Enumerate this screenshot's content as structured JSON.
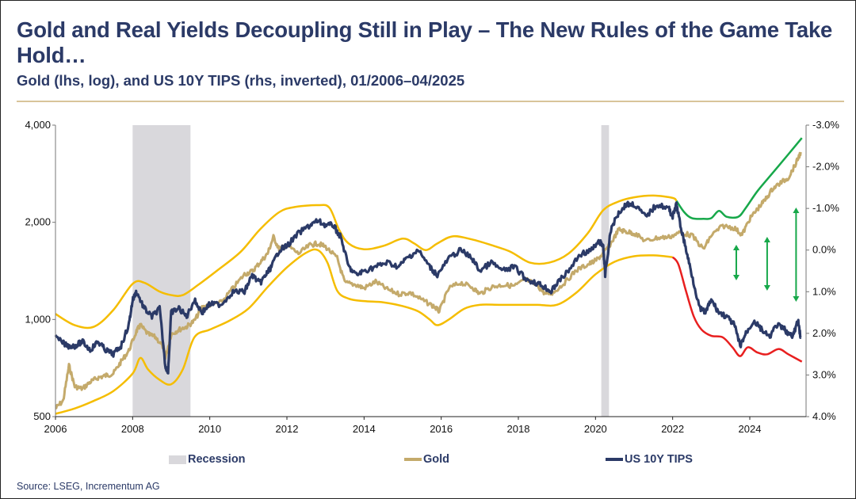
{
  "header": {
    "title": "Gold and Real Yields Decoupling Still in Play – The New Rules of the Game Take Hold…",
    "subtitle": "Gold (lhs, log), and US 10Y TIPS (rhs, inverted), 01/2006–04/2025"
  },
  "footer": {
    "source": "Source: LSEG, Incrementum AG"
  },
  "colors": {
    "title": "#2b3a67",
    "gold": "#c4aa6b",
    "tips": "#2b3a67",
    "channel": "#f5bd00",
    "green": "#17a84a",
    "red": "#e81f1f",
    "recession": "#d9d8dc",
    "rule": "#d8c49a"
  },
  "chart_data": {
    "type": "line",
    "title": "Gold and Real Yields Decoupling Still in Play – The New Rules of the Game Take Hold…",
    "subtitle": "Gold (lhs, log), and US 10Y TIPS (rhs, inverted), 01/2006–04/2025",
    "x_range": [
      2006,
      2025.35
    ],
    "x_ticks": [
      "2006",
      "2008",
      "2010",
      "2012",
      "2014",
      "2016",
      "2018",
      "2020",
      "2022",
      "2024"
    ],
    "y_left": {
      "label": "Gold (USD, log)",
      "scale": "log",
      "range": [
        500,
        4000
      ],
      "ticks": [
        "500",
        "1,000",
        "2,000",
        "4,000"
      ],
      "tick_values": [
        500,
        1000,
        2000,
        4000
      ]
    },
    "y_right": {
      "label": "US 10Y TIPS (inverted)",
      "range": [
        4.0,
        -3.0
      ],
      "inverted": true,
      "ticks": [
        "-3.0%",
        "-2.0%",
        "-1.0%",
        "0.0%",
        "1.0%",
        "2.0%",
        "3.0%",
        "4.0%"
      ],
      "tick_values": [
        -3,
        -2,
        -1,
        0,
        1,
        2,
        3,
        4
      ]
    },
    "legend": [
      {
        "name": "Recession",
        "kind": "area"
      },
      {
        "name": "Gold",
        "kind": "line"
      },
      {
        "name": "US 10Y TIPS",
        "kind": "line"
      }
    ],
    "legend_position": "bottom",
    "recessions": [
      [
        2008.0,
        2009.5
      ],
      [
        2020.15,
        2020.35
      ]
    ],
    "series": [
      {
        "name": "Gold",
        "axis": "left",
        "x": [
          2006.0,
          2006.2,
          2006.35,
          2006.5,
          2006.7,
          2006.9,
          2007.1,
          2007.3,
          2007.5,
          2007.7,
          2007.9,
          2008.1,
          2008.2,
          2008.4,
          2008.6,
          2008.8,
          2008.85,
          2009.0,
          2009.2,
          2009.4,
          2009.6,
          2009.8,
          2010.0,
          2010.3,
          2010.6,
          2010.9,
          2011.1,
          2011.3,
          2011.5,
          2011.65,
          2011.8,
          2012.0,
          2012.3,
          2012.6,
          2012.8,
          2013.0,
          2013.3,
          2013.5,
          2013.8,
          2014.0,
          2014.3,
          2014.6,
          2014.9,
          2015.2,
          2015.5,
          2015.8,
          2015.95,
          2016.2,
          2016.5,
          2016.8,
          2017.0,
          2017.3,
          2017.6,
          2017.9,
          2018.2,
          2018.5,
          2018.7,
          2018.9,
          2019.2,
          2019.5,
          2019.8,
          2020.0,
          2020.2,
          2020.4,
          2020.6,
          2020.8,
          2021.0,
          2021.3,
          2021.6,
          2021.9,
          2022.2,
          2022.5,
          2022.8,
          2023.0,
          2023.3,
          2023.6,
          2023.8,
          2024.0,
          2024.2,
          2024.4,
          2024.6,
          2024.8,
          2025.0,
          2025.2,
          2025.32
        ],
        "values": [
          530,
          560,
          720,
          620,
          610,
          640,
          660,
          670,
          680,
          740,
          800,
          920,
          960,
          900,
          880,
          820,
          760,
          900,
          930,
          950,
          990,
          1090,
          1110,
          1130,
          1250,
          1380,
          1410,
          1500,
          1600,
          1800,
          1650,
          1700,
          1600,
          1700,
          1720,
          1680,
          1550,
          1300,
          1280,
          1250,
          1310,
          1240,
          1200,
          1210,
          1150,
          1100,
          1060,
          1250,
          1300,
          1260,
          1200,
          1260,
          1280,
          1270,
          1330,
          1270,
          1200,
          1210,
          1300,
          1420,
          1480,
          1520,
          1600,
          1720,
          1900,
          1870,
          1850,
          1750,
          1790,
          1800,
          1860,
          1820,
          1650,
          1820,
          1950,
          1920,
          1830,
          2050,
          2200,
          2350,
          2550,
          2650,
          2750,
          3050,
          3300
        ]
      },
      {
        "name": "US 10Y TIPS",
        "axis": "right",
        "unit": "%",
        "x": [
          2006.0,
          2006.3,
          2006.5,
          2006.7,
          2006.9,
          2007.1,
          2007.3,
          2007.5,
          2007.7,
          2007.9,
          2008.0,
          2008.1,
          2008.3,
          2008.5,
          2008.7,
          2008.85,
          2008.92,
          2009.0,
          2009.2,
          2009.4,
          2009.6,
          2009.8,
          2010.0,
          2010.3,
          2010.6,
          2010.9,
          2011.1,
          2011.3,
          2011.45,
          2011.6,
          2011.8,
          2012.0,
          2012.3,
          2012.6,
          2012.8,
          2013.0,
          2013.2,
          2013.4,
          2013.6,
          2013.8,
          2014.0,
          2014.3,
          2014.6,
          2014.9,
          2015.1,
          2015.4,
          2015.7,
          2015.9,
          2016.2,
          2016.5,
          2016.8,
          2017.0,
          2017.3,
          2017.6,
          2017.9,
          2018.2,
          2018.5,
          2018.7,
          2018.85,
          2019.0,
          2019.3,
          2019.6,
          2019.9,
          2020.1,
          2020.2,
          2020.25,
          2020.4,
          2020.6,
          2020.8,
          2021.0,
          2021.3,
          2021.6,
          2021.9,
          2022.0,
          2022.1,
          2022.2,
          2022.35,
          2022.5,
          2022.7,
          2022.85,
          2023.0,
          2023.2,
          2023.4,
          2023.6,
          2023.75,
          2023.9,
          2024.1,
          2024.3,
          2024.5,
          2024.7,
          2024.9,
          2025.1,
          2025.25,
          2025.32
        ],
        "values": [
          2.1,
          2.3,
          2.3,
          2.2,
          2.4,
          2.2,
          2.4,
          2.5,
          2.3,
          1.8,
          1.2,
          1.0,
          1.4,
          1.6,
          1.4,
          2.8,
          2.9,
          1.5,
          1.4,
          1.6,
          1.2,
          1.5,
          1.3,
          1.3,
          1.0,
          1.0,
          0.6,
          0.8,
          0.6,
          0.4,
          0.0,
          -0.1,
          -0.4,
          -0.6,
          -0.7,
          -0.6,
          -0.6,
          -0.3,
          0.4,
          0.6,
          0.5,
          0.4,
          0.3,
          0.4,
          0.2,
          0.0,
          0.4,
          0.6,
          0.2,
          0.0,
          0.2,
          0.5,
          0.3,
          0.5,
          0.4,
          0.7,
          0.8,
          0.9,
          1.0,
          0.8,
          0.5,
          0.1,
          0.0,
          -0.2,
          -0.1,
          0.6,
          -0.5,
          -0.9,
          -1.1,
          -1.1,
          -0.8,
          -1.1,
          -1.0,
          -0.8,
          -1.1,
          -0.6,
          0.0,
          0.6,
          1.4,
          1.5,
          1.2,
          1.5,
          1.6,
          1.8,
          2.3,
          2.0,
          1.7,
          1.9,
          2.1,
          1.8,
          1.9,
          2.1,
          1.7,
          2.1
        ]
      },
      {
        "name": "Upper channel",
        "axis": "left",
        "x": [
          2006.0,
          2006.5,
          2007.0,
          2007.5,
          2008.0,
          2008.3,
          2008.7,
          2009.0,
          2009.3,
          2009.7,
          2010.2,
          2010.8,
          2011.3,
          2011.8,
          2012.2,
          2012.8,
          2013.1,
          2013.35,
          2013.6,
          2014.0,
          2014.5,
          2015.0,
          2015.3,
          2015.6,
          2015.9,
          2016.3,
          2016.8,
          2017.3,
          2017.8,
          2018.3,
          2018.8,
          2019.3,
          2019.8,
          2020.2,
          2020.6,
          2021.0,
          2021.5,
          2022.0,
          2022.1
        ],
        "values": [
          1040,
          960,
          950,
          1070,
          1290,
          1300,
          1220,
          1190,
          1190,
          1280,
          1420,
          1620,
          1900,
          2150,
          2230,
          2260,
          2220,
          1900,
          1720,
          1650,
          1690,
          1780,
          1720,
          1640,
          1720,
          1810,
          1770,
          1700,
          1620,
          1500,
          1500,
          1600,
          1850,
          2180,
          2320,
          2390,
          2420,
          2380,
          2330
        ]
      },
      {
        "name": "Lower channel",
        "axis": "left",
        "x": [
          2006.0,
          2006.5,
          2007.0,
          2007.5,
          2008.0,
          2008.2,
          2008.4,
          2008.7,
          2009.0,
          2009.3,
          2009.6,
          2010.0,
          2010.5,
          2011.0,
          2011.5,
          2012.0,
          2012.5,
          2012.8,
          2013.05,
          2013.3,
          2013.6,
          2014.0,
          2014.5,
          2015.0,
          2015.4,
          2015.7,
          2015.9,
          2016.2,
          2016.6,
          2017.0,
          2017.5,
          2018.0,
          2018.5,
          2019.0,
          2019.5,
          2020.0,
          2020.5,
          2021.0,
          2021.5,
          2022.0
        ],
        "values": [
          510,
          530,
          560,
          600,
          680,
          760,
          700,
          650,
          630,
          700,
          880,
          930,
          990,
          1080,
          1260,
          1450,
          1610,
          1640,
          1500,
          1230,
          1160,
          1140,
          1130,
          1100,
          1060,
          1000,
          960,
          1000,
          1080,
          1110,
          1110,
          1110,
          1110,
          1110,
          1210,
          1380,
          1510,
          1570,
          1580,
          1560
        ]
      },
      {
        "name": "Upper channel (post-2022, green)",
        "axis": "left",
        "x": [
          2022.1,
          2022.3,
          2022.5,
          2022.8,
          2023.0,
          2023.2,
          2023.4,
          2023.7,
          2023.9,
          2024.2,
          2024.6,
          2025.0,
          2025.35
        ],
        "values": [
          2330,
          2150,
          2060,
          2050,
          2060,
          2170,
          2080,
          2080,
          2220,
          2500,
          2850,
          3250,
          3650
        ]
      },
      {
        "name": "Lower channel (post-2022, red)",
        "axis": "left",
        "x": [
          2022.0,
          2022.15,
          2022.35,
          2022.55,
          2022.75,
          2023.0,
          2023.3,
          2023.55,
          2023.75,
          2023.95,
          2024.2,
          2024.45,
          2024.75,
          2025.0,
          2025.35
        ],
        "values": [
          1560,
          1480,
          1220,
          1020,
          930,
          890,
          880,
          820,
          770,
          820,
          790,
          780,
          810,
          780,
          740
        ]
      }
    ],
    "annotations": [
      {
        "type": "double-arrow",
        "x": 2023.65,
        "color": "green"
      },
      {
        "type": "double-arrow",
        "x": 2024.45,
        "color": "green"
      },
      {
        "type": "double-arrow",
        "x": 2025.2,
        "color": "green"
      }
    ]
  }
}
